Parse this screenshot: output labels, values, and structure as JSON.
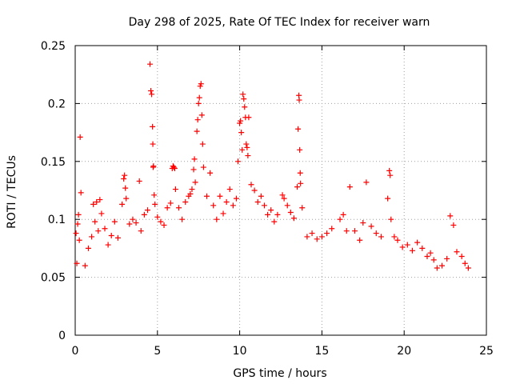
{
  "chart_data": {
    "type": "scatter",
    "title": "Day 298 of 2025, Rate Of TEC Index for receiver warn",
    "xlabel": "GPS time / hours",
    "ylabel": "ROTI / TECUs",
    "xlim": [
      0,
      25
    ],
    "ylim": [
      0,
      0.25
    ],
    "x_ticks": [
      0,
      5,
      10,
      15,
      20,
      25
    ],
    "x_tick_labels": [
      "0",
      "5",
      "10",
      "15",
      "20",
      "25"
    ],
    "y_ticks": [
      0,
      0.05,
      0.1,
      0.15,
      0.2,
      0.25
    ],
    "y_tick_labels": [
      "0",
      "0.05",
      "0.1",
      "0.15",
      "0.2",
      "0.25"
    ],
    "grid": true,
    "marker": "+",
    "color": "#ff0000",
    "series": [
      {
        "points": [
          [
            0.05,
            0.088
          ],
          [
            0.1,
            0.062
          ],
          [
            0.15,
            0.096
          ],
          [
            0.2,
            0.104
          ],
          [
            0.25,
            0.082
          ],
          [
            0.3,
            0.171
          ],
          [
            0.35,
            0.123
          ],
          [
            0.6,
            0.06
          ],
          [
            0.8,
            0.075
          ],
          [
            1.0,
            0.085
          ],
          [
            1.1,
            0.113
          ],
          [
            1.2,
            0.098
          ],
          [
            1.3,
            0.115
          ],
          [
            1.4,
            0.09
          ],
          [
            1.5,
            0.117
          ],
          [
            1.6,
            0.105
          ],
          [
            1.8,
            0.092
          ],
          [
            2.0,
            0.078
          ],
          [
            2.2,
            0.086
          ],
          [
            2.4,
            0.098
          ],
          [
            2.6,
            0.084
          ],
          [
            2.85,
            0.113
          ],
          [
            2.95,
            0.135
          ],
          [
            3.0,
            0.138
          ],
          [
            3.05,
            0.127
          ],
          [
            3.1,
            0.118
          ],
          [
            3.3,
            0.096
          ],
          [
            3.5,
            0.1
          ],
          [
            3.7,
            0.097
          ],
          [
            3.9,
            0.133
          ],
          [
            4.0,
            0.09
          ],
          [
            4.2,
            0.104
          ],
          [
            4.4,
            0.108
          ],
          [
            4.55,
            0.234
          ],
          [
            4.6,
            0.211
          ],
          [
            4.65,
            0.208
          ],
          [
            4.7,
            0.18
          ],
          [
            4.72,
            0.165
          ],
          [
            4.74,
            0.145
          ],
          [
            4.76,
            0.146
          ],
          [
            4.8,
            0.121
          ],
          [
            4.85,
            0.113
          ],
          [
            5.0,
            0.102
          ],
          [
            5.2,
            0.098
          ],
          [
            5.4,
            0.095
          ],
          [
            5.6,
            0.11
          ],
          [
            5.8,
            0.114
          ],
          [
            5.9,
            0.144
          ],
          [
            5.95,
            0.146
          ],
          [
            6.0,
            0.145
          ],
          [
            6.05,
            0.144
          ],
          [
            6.1,
            0.126
          ],
          [
            6.3,
            0.11
          ],
          [
            6.5,
            0.1
          ],
          [
            6.7,
            0.115
          ],
          [
            6.9,
            0.12
          ],
          [
            7.0,
            0.122
          ],
          [
            7.1,
            0.126
          ],
          [
            7.2,
            0.143
          ],
          [
            7.25,
            0.152
          ],
          [
            7.3,
            0.132
          ],
          [
            7.4,
            0.176
          ],
          [
            7.45,
            0.186
          ],
          [
            7.5,
            0.2
          ],
          [
            7.55,
            0.205
          ],
          [
            7.6,
            0.215
          ],
          [
            7.65,
            0.217
          ],
          [
            7.7,
            0.19
          ],
          [
            7.75,
            0.165
          ],
          [
            7.8,
            0.145
          ],
          [
            8.0,
            0.12
          ],
          [
            8.2,
            0.14
          ],
          [
            8.4,
            0.112
          ],
          [
            8.6,
            0.1
          ],
          [
            8.8,
            0.12
          ],
          [
            9.0,
            0.105
          ],
          [
            9.2,
            0.115
          ],
          [
            9.4,
            0.126
          ],
          [
            9.6,
            0.112
          ],
          [
            9.8,
            0.118
          ],
          [
            9.9,
            0.15
          ],
          [
            10.0,
            0.183
          ],
          [
            10.05,
            0.185
          ],
          [
            10.1,
            0.175
          ],
          [
            10.15,
            0.16
          ],
          [
            10.2,
            0.208
          ],
          [
            10.25,
            0.204
          ],
          [
            10.3,
            0.197
          ],
          [
            10.35,
            0.188
          ],
          [
            10.4,
            0.165
          ],
          [
            10.45,
            0.162
          ],
          [
            10.5,
            0.155
          ],
          [
            10.55,
            0.188
          ],
          [
            10.7,
            0.13
          ],
          [
            10.9,
            0.125
          ],
          [
            11.1,
            0.115
          ],
          [
            11.3,
            0.12
          ],
          [
            11.5,
            0.112
          ],
          [
            11.7,
            0.104
          ],
          [
            11.9,
            0.108
          ],
          [
            12.1,
            0.098
          ],
          [
            12.3,
            0.104
          ],
          [
            12.6,
            0.121
          ],
          [
            12.7,
            0.118
          ],
          [
            12.9,
            0.112
          ],
          [
            13.1,
            0.106
          ],
          [
            13.3,
            0.101
          ],
          [
            13.5,
            0.128
          ],
          [
            13.55,
            0.178
          ],
          [
            13.6,
            0.207
          ],
          [
            13.62,
            0.203
          ],
          [
            13.65,
            0.16
          ],
          [
            13.68,
            0.14
          ],
          [
            13.7,
            0.131
          ],
          [
            13.8,
            0.11
          ],
          [
            14.1,
            0.085
          ],
          [
            14.4,
            0.088
          ],
          [
            14.7,
            0.083
          ],
          [
            15.0,
            0.085
          ],
          [
            15.3,
            0.088
          ],
          [
            15.6,
            0.092
          ],
          [
            16.1,
            0.1
          ],
          [
            16.3,
            0.104
          ],
          [
            16.5,
            0.09
          ],
          [
            16.7,
            0.128
          ],
          [
            17.0,
            0.09
          ],
          [
            17.3,
            0.082
          ],
          [
            17.5,
            0.097
          ],
          [
            17.7,
            0.132
          ],
          [
            18.0,
            0.094
          ],
          [
            18.3,
            0.088
          ],
          [
            18.6,
            0.085
          ],
          [
            19.0,
            0.118
          ],
          [
            19.1,
            0.142
          ],
          [
            19.15,
            0.138
          ],
          [
            19.2,
            0.1
          ],
          [
            19.4,
            0.085
          ],
          [
            19.6,
            0.082
          ],
          [
            19.9,
            0.076
          ],
          [
            20.2,
            0.078
          ],
          [
            20.5,
            0.073
          ],
          [
            20.8,
            0.08
          ],
          [
            21.1,
            0.075
          ],
          [
            21.4,
            0.068
          ],
          [
            21.6,
            0.071
          ],
          [
            21.8,
            0.065
          ],
          [
            22.0,
            0.058
          ],
          [
            22.3,
            0.06
          ],
          [
            22.6,
            0.066
          ],
          [
            22.8,
            0.103
          ],
          [
            23.0,
            0.095
          ],
          [
            23.2,
            0.072
          ],
          [
            23.5,
            0.068
          ],
          [
            23.7,
            0.062
          ],
          [
            23.9,
            0.058
          ]
        ]
      }
    ]
  }
}
